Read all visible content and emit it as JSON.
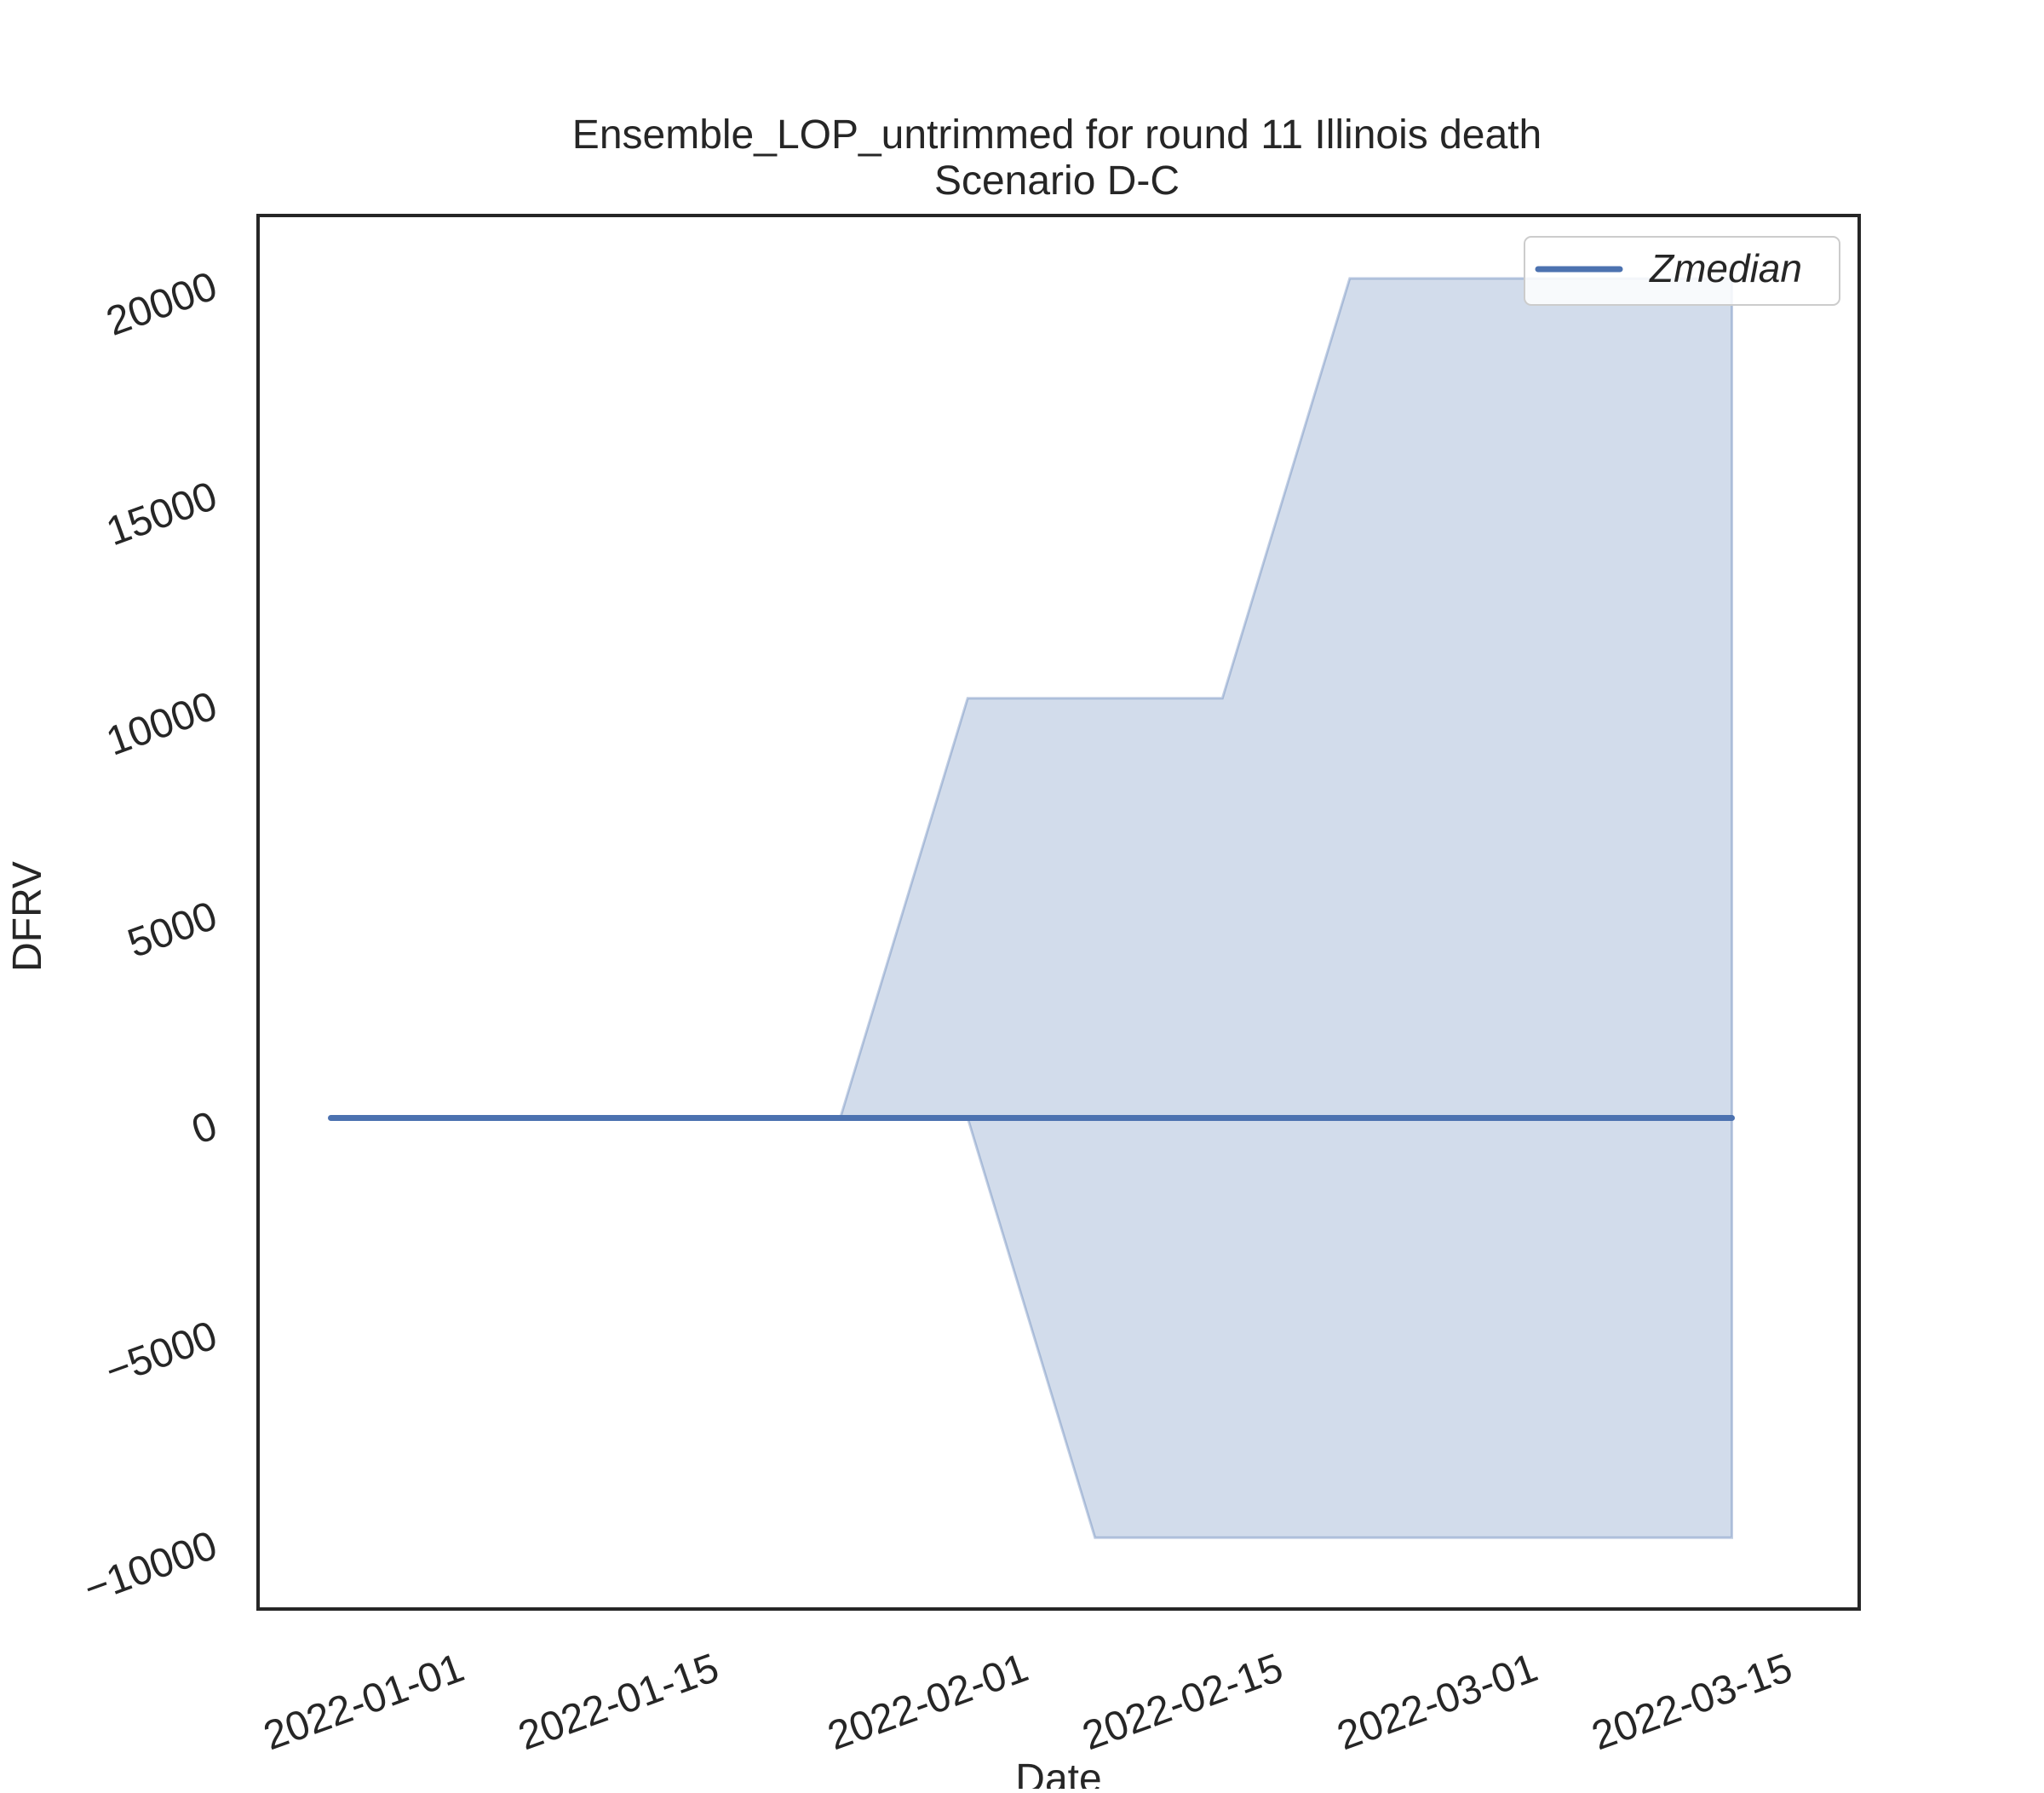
{
  "chart_data": {
    "type": "line",
    "title": "Ensemble_LOP_untrimmed for round 11 Illinois death",
    "subtitle": "Scenario D-C",
    "xlabel": "Date",
    "ylabel": "DFRV",
    "x_ticks": [
      "2022-01-01",
      "2022-01-15",
      "2022-02-01",
      "2022-02-15",
      "2022-03-01",
      "2022-03-15"
    ],
    "y_ticks": [
      {
        "value": -10000,
        "label": "−10000"
      },
      {
        "value": -5000,
        "label": "−5000"
      },
      {
        "value": 0,
        "label": "0"
      },
      {
        "value": 5000,
        "label": "5000"
      },
      {
        "value": 10000,
        "label": "10000"
      },
      {
        "value": 15000,
        "label": "15000"
      },
      {
        "value": 20000,
        "label": "20000"
      }
    ],
    "xlim": [
      "2021-12-21",
      "2022-03-19"
    ],
    "ylim": [
      -11700,
      21500
    ],
    "grid": false,
    "legend": {
      "position": "top-right",
      "entries": [
        "Zmedian"
      ]
    },
    "series": [
      {
        "name": "Zmedian",
        "color": "#4c72b0",
        "x": [
          "2021-12-25",
          "2022-01-01",
          "2022-01-08",
          "2022-01-15",
          "2022-01-22",
          "2022-01-29",
          "2022-02-05",
          "2022-02-12",
          "2022-02-19",
          "2022-02-26",
          "2022-03-05",
          "2022-03-12"
        ],
        "values": [
          0,
          0,
          0,
          0,
          0,
          0,
          0,
          0,
          0,
          0,
          0,
          0
        ]
      }
    ],
    "band": {
      "color": "#4c72b0",
      "opacity": 0.25,
      "x": [
        "2021-12-25",
        "2022-01-01",
        "2022-01-08",
        "2022-01-15",
        "2022-01-22",
        "2022-01-29",
        "2022-02-05",
        "2022-02-12",
        "2022-02-19",
        "2022-02-26",
        "2022-03-05",
        "2022-03-12"
      ],
      "lower": [
        0,
        0,
        0,
        0,
        0,
        0,
        -10000,
        -10000,
        -10000,
        -10000,
        -10000,
        -10000
      ],
      "upper": [
        0,
        0,
        0,
        0,
        0,
        10000,
        10000,
        10000,
        20000,
        20000,
        20000,
        20000
      ]
    }
  }
}
